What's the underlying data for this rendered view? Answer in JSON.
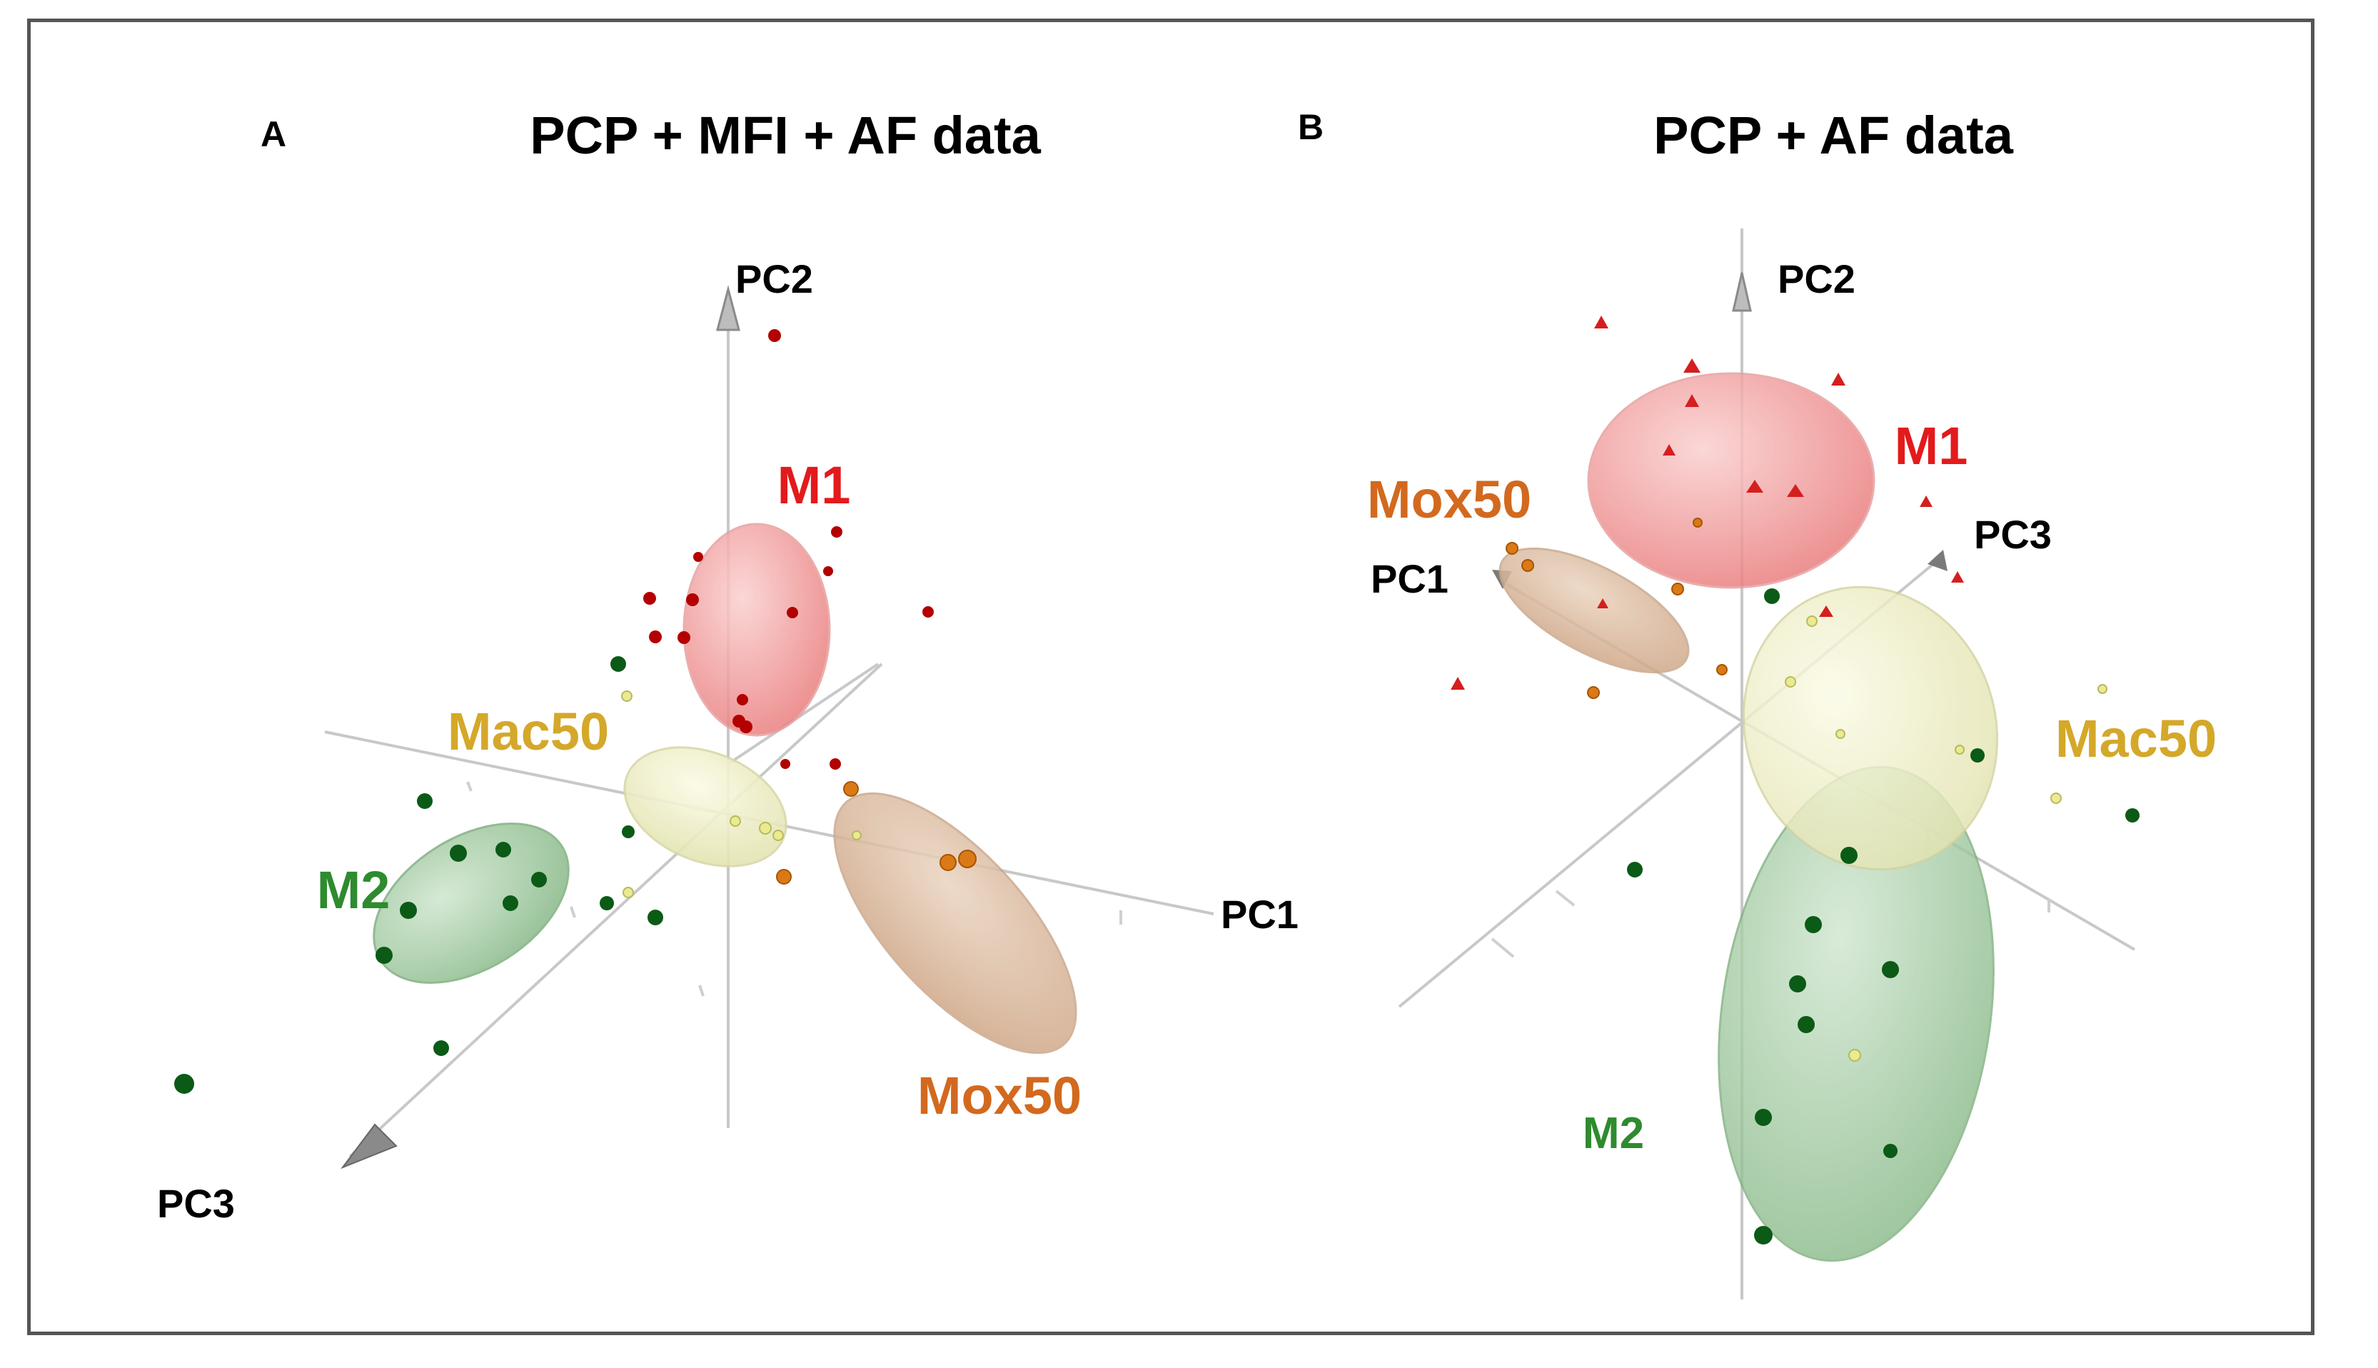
{
  "chart_data": [
    {
      "type": "scatter",
      "panel": "A",
      "title": "PCP + MFI + AF data",
      "axes": [
        "PC1",
        "PC2",
        "PC3"
      ],
      "groups": [
        {
          "name": "M1",
          "color": "#e31a1c",
          "marker_color": "#b30000",
          "ellipse_color": "#f28b8b"
        },
        {
          "name": "Mac50",
          "color": "#d4a82a",
          "marker_color": "#e8e080",
          "ellipse_color": "#eeeec8"
        },
        {
          "name": "M2",
          "color": "#2e8b2e",
          "marker_color": "#0b5a16",
          "ellipse_color": "#9cc79c"
        },
        {
          "name": "Mox50",
          "color": "#d2691e",
          "marker_color": "#d97a16",
          "ellipse_color": "#d8b49a"
        }
      ]
    },
    {
      "type": "scatter",
      "panel": "B",
      "title": "PCP + AF data",
      "axes": [
        "PC1",
        "PC2",
        "PC3"
      ],
      "groups": [
        {
          "name": "M1",
          "color": "#e31a1c",
          "marker_color": "#d61e1e",
          "ellipse_color": "#f28b8b"
        },
        {
          "name": "Mox50",
          "color": "#d2691e",
          "marker_color": "#d97a16",
          "ellipse_color": "#e0c09e"
        },
        {
          "name": "Mac50",
          "color": "#d4a82a",
          "marker_color": "#e8e080",
          "ellipse_color": "#eeeec0"
        },
        {
          "name": "M2",
          "color": "#2e8b2e",
          "marker_color": "#0b5a16",
          "ellipse_color": "#9cc79c"
        }
      ]
    }
  ]
}
